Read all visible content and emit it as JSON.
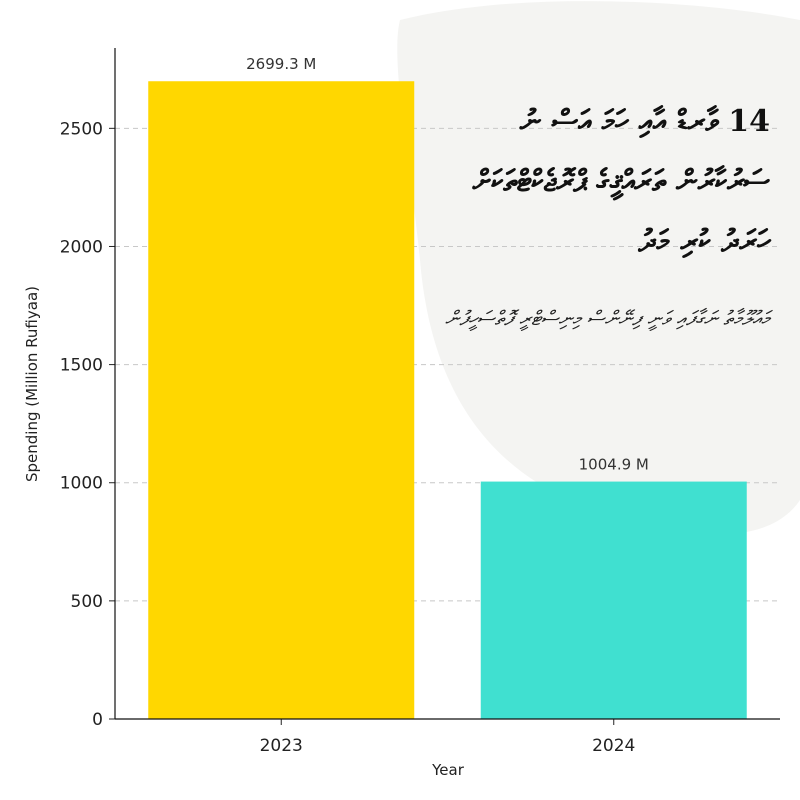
{
  "chart_data": {
    "type": "bar",
    "categories": [
      "2023",
      "2024"
    ],
    "values": [
      2699.3,
      1004.9
    ],
    "data_labels": [
      "2699.3 M",
      "1004.9 M"
    ],
    "bar_colors": [
      "#FFD700",
      "#40E0D0"
    ],
    "xlabel": "Year",
    "ylabel": "Spending (Million Rufiyaa)",
    "ylim": [
      0,
      2840
    ],
    "yticks": [
      0,
      500,
      1000,
      1500,
      2000,
      2500
    ],
    "grid": "horizontal dashed",
    "legend": "none"
  },
  "overlay": {
    "title": "14 ވާރޑް އާއި ހަމަ އަސް ނު ސަރުކާރުން ތަރައްޤީގެ ޕްރޮޖެކްޓްތަކަށް ހަރަދު ކުރި މަދު",
    "subtitle": "މައުލޫމާތު ނަގާފައި ވަނީ ފިނޭންސް މިނިސްޓްރީ ފޮތްސަހީފުން"
  }
}
